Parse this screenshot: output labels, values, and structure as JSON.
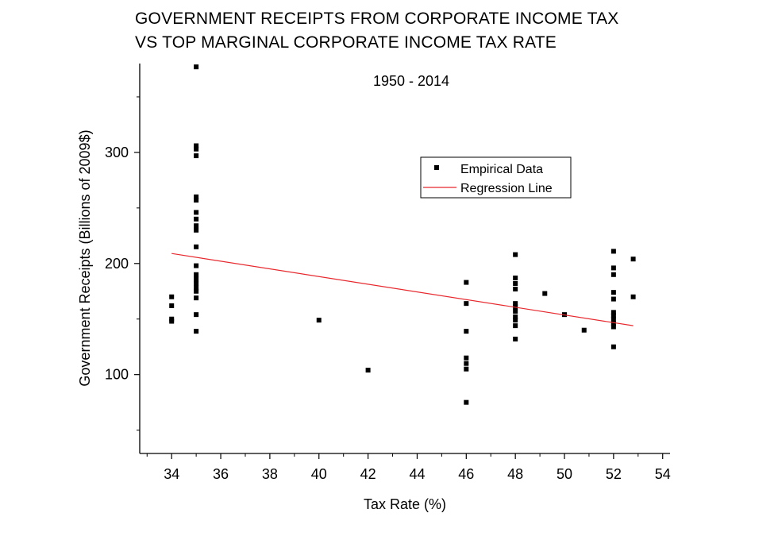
{
  "chart_data": {
    "type": "scatter",
    "title_lines": [
      "GOVERNMENT RECEIPTS FROM CORPORATE INCOME TAX",
      "VS TOP MARGINAL CORPORATE INCOME TAX RATE"
    ],
    "subtitle": "1950 - 2014",
    "xlabel": "Tax Rate (%)",
    "ylabel": "Government Receipts (Billions of 2009$)",
    "xlim": [
      32.7,
      54.3
    ],
    "ylim": [
      29,
      380
    ],
    "x_ticks": [
      34,
      36,
      38,
      40,
      42,
      44,
      46,
      48,
      50,
      52,
      54
    ],
    "y_ticks": [
      100,
      200,
      300
    ],
    "grid": false,
    "legend_position": "upper-right",
    "legend": {
      "scatter_label": "Empirical Data",
      "line_label": "Regression Line"
    },
    "series": [
      {
        "name": "Empirical Data",
        "kind": "scatter",
        "color": "#000000",
        "points": [
          [
            34,
            170
          ],
          [
            34,
            162
          ],
          [
            34,
            150
          ],
          [
            34,
            148
          ],
          [
            35,
            383
          ],
          [
            35,
            377
          ],
          [
            35,
            306
          ],
          [
            35,
            303
          ],
          [
            35,
            297
          ],
          [
            35,
            260
          ],
          [
            35,
            257
          ],
          [
            35,
            246
          ],
          [
            35,
            240
          ],
          [
            35,
            234
          ],
          [
            35,
            230
          ],
          [
            35,
            215
          ],
          [
            35,
            198
          ],
          [
            35,
            190
          ],
          [
            35,
            186
          ],
          [
            35,
            182
          ],
          [
            35,
            178
          ],
          [
            35,
            175
          ],
          [
            35,
            169
          ],
          [
            35,
            154
          ],
          [
            35,
            139
          ],
          [
            40,
            149
          ],
          [
            42,
            104
          ],
          [
            46,
            183
          ],
          [
            46,
            164
          ],
          [
            46,
            139
          ],
          [
            46,
            115
          ],
          [
            46,
            110
          ],
          [
            46,
            105
          ],
          [
            46,
            75
          ],
          [
            48,
            208
          ],
          [
            48,
            187
          ],
          [
            48,
            182
          ],
          [
            48,
            177
          ],
          [
            48,
            164
          ],
          [
            48,
            161
          ],
          [
            48,
            157
          ],
          [
            48,
            152
          ],
          [
            48,
            149
          ],
          [
            48,
            144
          ],
          [
            48,
            132
          ],
          [
            49.2,
            173
          ],
          [
            50,
            154
          ],
          [
            50.8,
            140
          ],
          [
            52,
            211
          ],
          [
            52,
            196
          ],
          [
            52,
            190
          ],
          [
            52,
            174
          ],
          [
            52,
            168
          ],
          [
            52,
            156
          ],
          [
            52,
            153
          ],
          [
            52,
            150
          ],
          [
            52,
            146
          ],
          [
            52,
            143
          ],
          [
            52,
            125
          ],
          [
            52.8,
            204
          ],
          [
            52.8,
            170
          ]
        ]
      },
      {
        "name": "Regression Line",
        "kind": "line",
        "color": "#e8282d",
        "points": [
          [
            34,
            209
          ],
          [
            52.8,
            144
          ]
        ]
      }
    ]
  }
}
